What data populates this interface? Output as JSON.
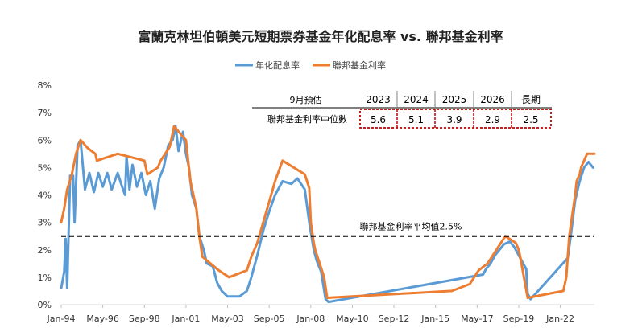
{
  "chart_data": {
    "type": "line",
    "title": "富蘭克林坦伯頓美元短期票券基金年化配息率 vs. 聯邦基金利率",
    "ylim": [
      0,
      8
    ],
    "y_ticks": [
      "0%",
      "1%",
      "2%",
      "3%",
      "4%",
      "5%",
      "6%",
      "7%",
      "8%"
    ],
    "x_range": [
      "1994-01",
      "2023-12"
    ],
    "x_ticks": [
      {
        "date": "1994-01",
        "label": "Jan-94"
      },
      {
        "date": "1996-05",
        "label": "May-96"
      },
      {
        "date": "1998-09",
        "label": "Sep-98"
      },
      {
        "date": "2001-01",
        "label": "Jan-01"
      },
      {
        "date": "2003-05",
        "label": "May-03"
      },
      {
        "date": "2005-09",
        "label": "Sep-05"
      },
      {
        "date": "2008-01",
        "label": "Jan-08"
      },
      {
        "date": "2010-05",
        "label": "May-10"
      },
      {
        "date": "2012-09",
        "label": "Sep-12"
      },
      {
        "date": "2015-01",
        "label": "Jan-15"
      },
      {
        "date": "2017-05",
        "label": "May-17"
      },
      {
        "date": "2019-09",
        "label": "Sep-19"
      },
      {
        "date": "2022-01",
        "label": "Jan-22"
      }
    ],
    "legend_placement": "top-center",
    "grid": false,
    "series": [
      {
        "name": "年化配息率",
        "color": "#5b9bd5",
        "points": [
          [
            "1994-01",
            0.6
          ],
          [
            "1994-03",
            1.2
          ],
          [
            "1994-04",
            2.4
          ],
          [
            "1994-05",
            0.6
          ],
          [
            "1994-07",
            4.7
          ],
          [
            "1994-09",
            4.7
          ],
          [
            "1994-10",
            3.0
          ],
          [
            "1994-12",
            5.8
          ],
          [
            "1995-02",
            6.0
          ],
          [
            "1995-05",
            4.2
          ],
          [
            "1995-08",
            4.8
          ],
          [
            "1995-11",
            4.1
          ],
          [
            "1996-02",
            4.8
          ],
          [
            "1996-05",
            4.3
          ],
          [
            "1996-08",
            4.8
          ],
          [
            "1996-11",
            4.2
          ],
          [
            "1997-03",
            4.8
          ],
          [
            "1997-06",
            4.3
          ],
          [
            "1997-08",
            4.0
          ],
          [
            "1997-09",
            5.4
          ],
          [
            "1997-11",
            4.2
          ],
          [
            "1998-01",
            5.1
          ],
          [
            "1998-04",
            4.3
          ],
          [
            "1998-07",
            4.8
          ],
          [
            "1998-10",
            4.0
          ],
          [
            "1999-01",
            4.5
          ],
          [
            "1999-04",
            3.5
          ],
          [
            "1999-07",
            4.6
          ],
          [
            "1999-10",
            5.0
          ],
          [
            "2000-01",
            5.8
          ],
          [
            "2000-04",
            6.0
          ],
          [
            "2000-06",
            6.5
          ],
          [
            "2000-08",
            5.6
          ],
          [
            "2000-11",
            6.3
          ],
          [
            "2001-01",
            5.5
          ],
          [
            "2001-03",
            5.0
          ],
          [
            "2001-05",
            4.0
          ],
          [
            "2001-08",
            3.5
          ],
          [
            "2001-10",
            2.5
          ],
          [
            "2002-01",
            2.0
          ],
          [
            "2002-03",
            1.5
          ],
          [
            "2002-07",
            1.4
          ],
          [
            "2002-10",
            0.8
          ],
          [
            "2003-01",
            0.5
          ],
          [
            "2003-05",
            0.3
          ],
          [
            "2003-09",
            0.3
          ],
          [
            "2004-01",
            0.3
          ],
          [
            "2004-06",
            0.5
          ],
          [
            "2004-09",
            1.0
          ],
          [
            "2005-01",
            1.8
          ],
          [
            "2005-05",
            2.7
          ],
          [
            "2005-09",
            3.4
          ],
          [
            "2006-01",
            4.0
          ],
          [
            "2006-06",
            4.5
          ],
          [
            "2006-12",
            4.4
          ],
          [
            "2007-04",
            4.6
          ],
          [
            "2007-09",
            4.2
          ],
          [
            "2007-12",
            3.0
          ],
          [
            "2008-03",
            2.0
          ],
          [
            "2008-05",
            1.6
          ],
          [
            "2008-08",
            1.2
          ],
          [
            "2008-11",
            0.2
          ],
          [
            "2009-01",
            0.1
          ],
          [
            "2017-09",
            1.1
          ],
          [
            "2017-11",
            1.3
          ],
          [
            "2018-02",
            1.5
          ],
          [
            "2018-05",
            1.8
          ],
          [
            "2018-08",
            2.0
          ],
          [
            "2018-11",
            2.2
          ],
          [
            "2019-03",
            2.3
          ],
          [
            "2019-06",
            2.1
          ],
          [
            "2019-09",
            1.8
          ],
          [
            "2019-12",
            1.5
          ],
          [
            "2020-02",
            1.3
          ],
          [
            "2020-03",
            0.4
          ],
          [
            "2020-05",
            0.2
          ],
          [
            "2022-06",
            1.7
          ],
          [
            "2022-08",
            2.5
          ],
          [
            "2022-11",
            3.8
          ],
          [
            "2023-02",
            4.5
          ],
          [
            "2023-05",
            5.0
          ],
          [
            "2023-08",
            5.2
          ],
          [
            "2023-11",
            5.0
          ]
        ]
      },
      {
        "name": "聯邦基金利率",
        "color": "#ed7d31",
        "points": [
          [
            "1994-01",
            3.0
          ],
          [
            "1994-03",
            3.5
          ],
          [
            "1994-05",
            4.2
          ],
          [
            "1994-08",
            4.7
          ],
          [
            "1994-11",
            5.5
          ],
          [
            "1995-02",
            6.0
          ],
          [
            "1995-07",
            5.7
          ],
          [
            "1995-12",
            5.5
          ],
          [
            "1996-01",
            5.25
          ],
          [
            "1997-03",
            5.5
          ],
          [
            "1998-09",
            5.25
          ],
          [
            "1998-10",
            5.0
          ],
          [
            "1998-11",
            4.75
          ],
          [
            "1999-06",
            5.0
          ],
          [
            "1999-08",
            5.25
          ],
          [
            "1999-11",
            5.5
          ],
          [
            "2000-02",
            5.75
          ],
          [
            "2000-03",
            6.0
          ],
          [
            "2000-05",
            6.5
          ],
          [
            "2001-01",
            6.0
          ],
          [
            "2001-02",
            5.5
          ],
          [
            "2001-04",
            4.5
          ],
          [
            "2001-06",
            4.0
          ],
          [
            "2001-08",
            3.5
          ],
          [
            "2001-10",
            2.5
          ],
          [
            "2001-12",
            1.75
          ],
          [
            "2002-11",
            1.25
          ],
          [
            "2003-06",
            1.0
          ],
          [
            "2004-06",
            1.25
          ],
          [
            "2004-09",
            1.75
          ],
          [
            "2005-01",
            2.25
          ],
          [
            "2005-05",
            3.0
          ],
          [
            "2005-09",
            3.75
          ],
          [
            "2006-01",
            4.5
          ],
          [
            "2006-06",
            5.25
          ],
          [
            "2007-09",
            4.75
          ],
          [
            "2007-12",
            4.25
          ],
          [
            "2008-01",
            3.0
          ],
          [
            "2008-03",
            2.25
          ],
          [
            "2008-04",
            2.0
          ],
          [
            "2008-10",
            1.0
          ],
          [
            "2008-12",
            0.25
          ],
          [
            "2015-12",
            0.5
          ],
          [
            "2016-12",
            0.75
          ],
          [
            "2017-03",
            1.0
          ],
          [
            "2017-06",
            1.25
          ],
          [
            "2017-12",
            1.5
          ],
          [
            "2018-03",
            1.75
          ],
          [
            "2018-06",
            2.0
          ],
          [
            "2018-09",
            2.25
          ],
          [
            "2018-12",
            2.5
          ],
          [
            "2019-07",
            2.25
          ],
          [
            "2019-09",
            2.0
          ],
          [
            "2019-10",
            1.75
          ],
          [
            "2020-03",
            0.25
          ],
          [
            "2022-03",
            0.5
          ],
          [
            "2022-05",
            1.0
          ],
          [
            "2022-06",
            1.75
          ],
          [
            "2022-07",
            2.5
          ],
          [
            "2022-09",
            3.25
          ],
          [
            "2022-11",
            4.0
          ],
          [
            "2022-12",
            4.5
          ],
          [
            "2023-02",
            4.75
          ],
          [
            "2023-03",
            5.0
          ],
          [
            "2023-05",
            5.25
          ],
          [
            "2023-07",
            5.5
          ],
          [
            "2023-12",
            5.5
          ]
        ]
      }
    ],
    "reference_line": {
      "value": 2.5,
      "label": "聯邦基金利率平均值2.5%",
      "style": "dashed",
      "color": "#000000"
    },
    "table": {
      "header": [
        "9月預估",
        "2023",
        "2024",
        "2025",
        "2026",
        "長期"
      ],
      "row_label": "聯邦基金利率中位數",
      "values": [
        "5.6",
        "5.1",
        "3.9",
        "2.9",
        "2.5"
      ],
      "highlight_color": "#c00000"
    }
  }
}
